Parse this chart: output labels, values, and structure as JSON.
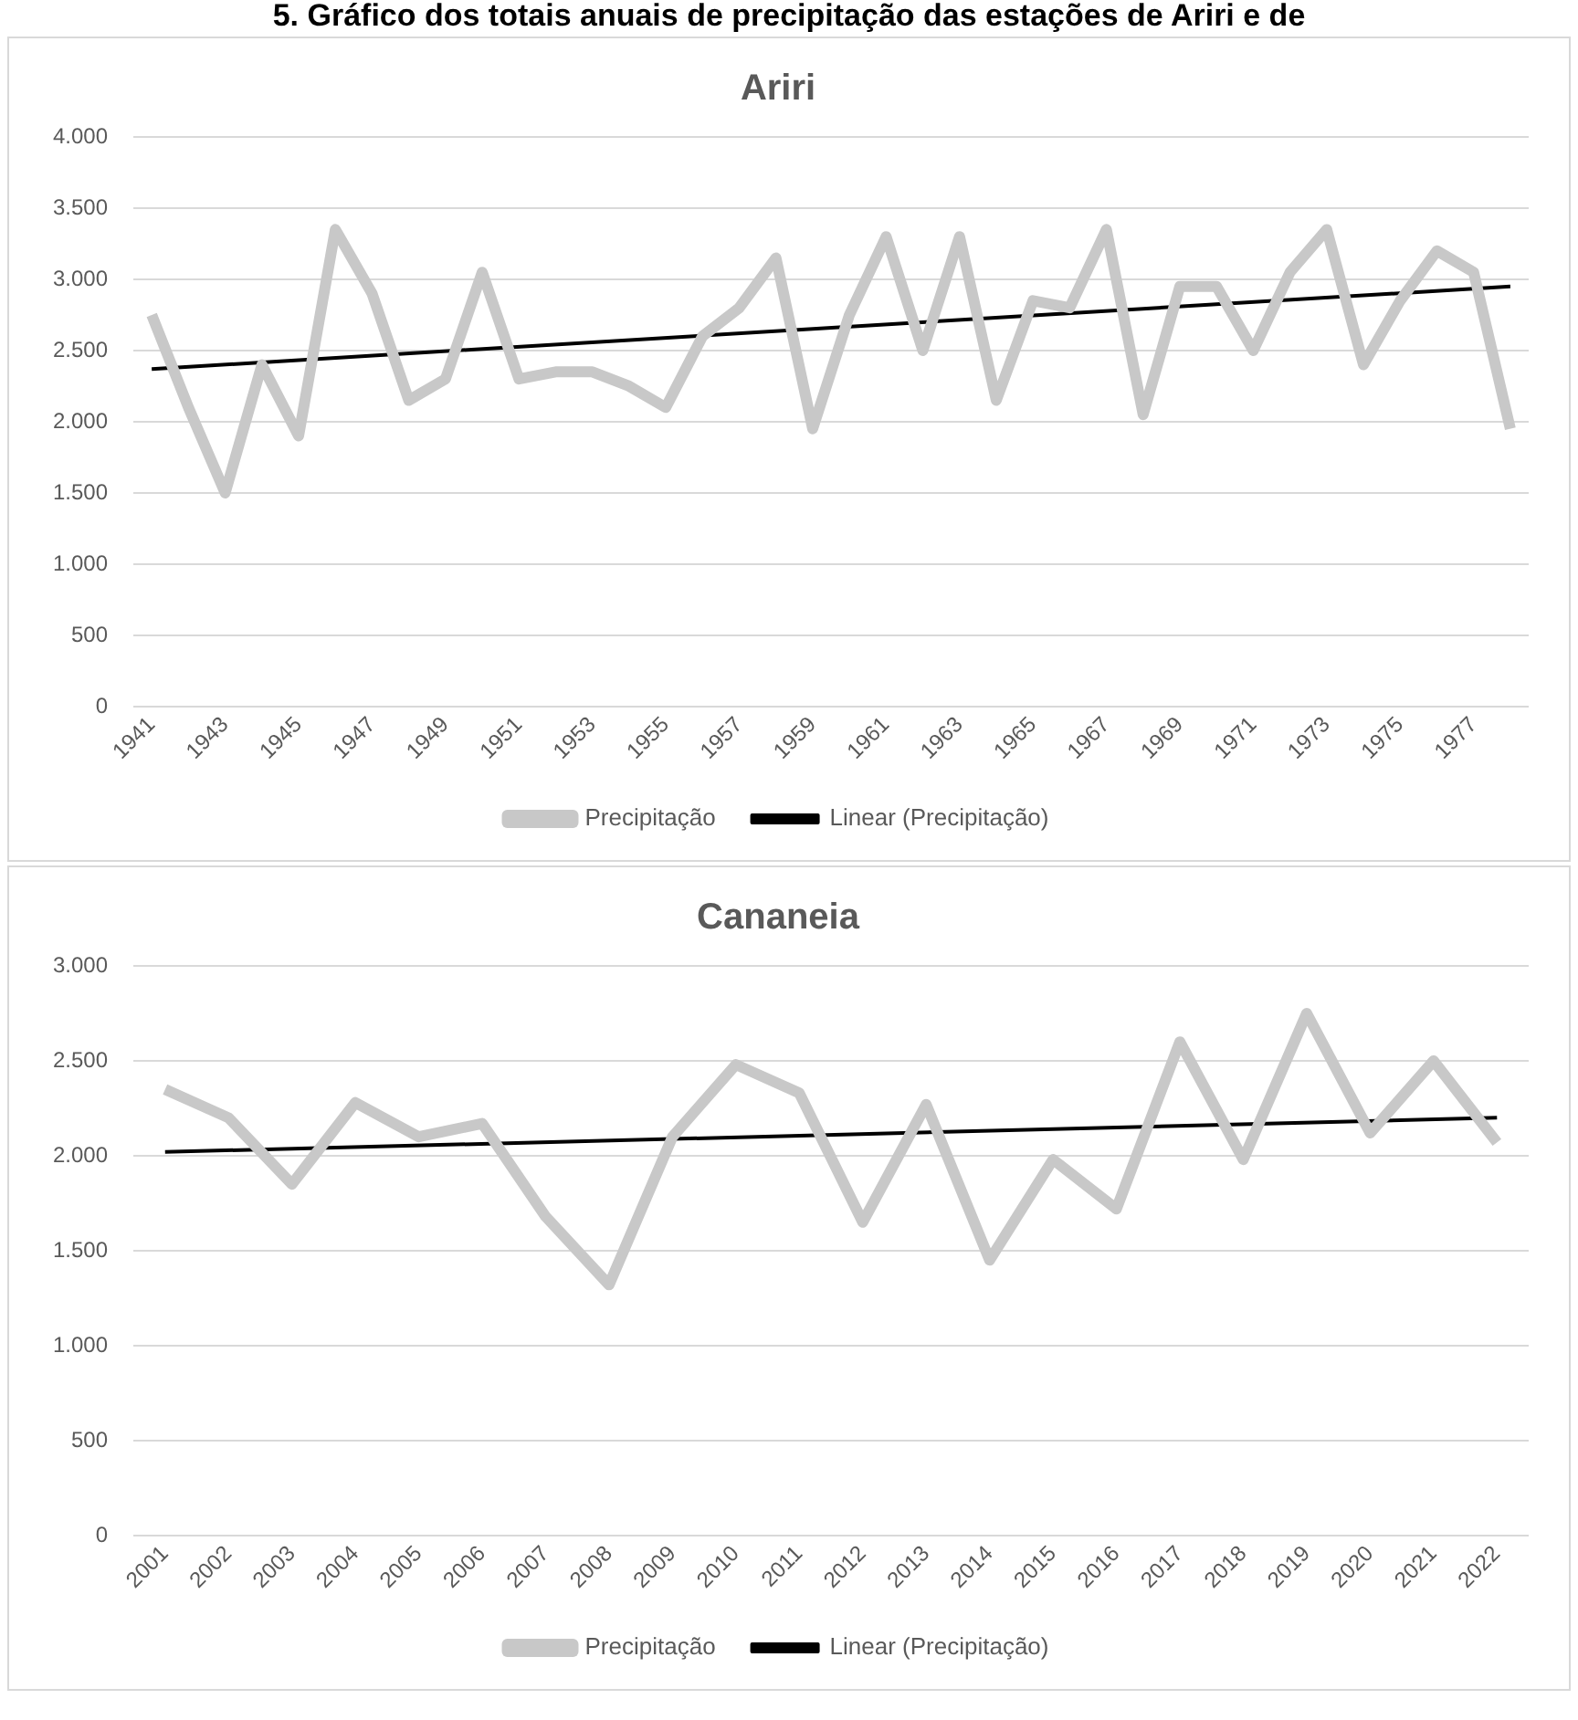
{
  "chart_data": [
    {
      "type": "line",
      "title": "Ariri",
      "annotations": [
        "5. Gráfico dos totais anuais de precipitação das estações de Ariri e de"
      ],
      "xlim": [
        1940.5,
        1978.5
      ],
      "xticks": [
        1941,
        1943,
        1945,
        1947,
        1949,
        1951,
        1953,
        1955,
        1957,
        1959,
        1961,
        1963,
        1965,
        1967,
        1969,
        1971,
        1973,
        1975,
        1977
      ],
      "ylim": [
        0,
        4000
      ],
      "yticks": [
        {
          "value": 0,
          "label": "0"
        },
        {
          "value": 500,
          "label": "500"
        },
        {
          "value": 1000,
          "label": "1.000"
        },
        {
          "value": 1500,
          "label": "1.500"
        },
        {
          "value": 2000,
          "label": "2.000"
        },
        {
          "value": 2500,
          "label": "2.500"
        },
        {
          "value": 3000,
          "label": "3.000"
        },
        {
          "value": 3500,
          "label": "3.500"
        },
        {
          "value": 4000,
          "label": "4.000"
        }
      ],
      "grid": "y",
      "legend": "bottom",
      "marker": "none",
      "series": [
        {
          "name": "Precipitação",
          "color": "#c8c8c8",
          "x": [
            1941,
            1942,
            1943,
            1944,
            1945,
            1946,
            1947,
            1948,
            1949,
            1950,
            1951,
            1952,
            1953,
            1954,
            1955,
            1956,
            1957,
            1958,
            1959,
            1960,
            1961,
            1962,
            1963,
            1964,
            1965,
            1966,
            1967,
            1968,
            1969,
            1970,
            1971,
            1972,
            1973,
            1974,
            1975,
            1976,
            1977,
            1978
          ],
          "values": [
            2750,
            2100,
            1500,
            2400,
            1900,
            3350,
            2900,
            2150,
            2300,
            3050,
            2300,
            2350,
            2350,
            2250,
            2100,
            2600,
            2800,
            3150,
            1950,
            2750,
            3300,
            2500,
            3300,
            2150,
            2850,
            2800,
            3350,
            2050,
            2950,
            2950,
            2500,
            3050,
            3350,
            2400,
            2850,
            3200,
            3050,
            1950
          ]
        },
        {
          "name": "Linear (Precipitação)",
          "color": "#000000",
          "x": [
            1941,
            1978
          ],
          "values": [
            2370,
            2950
          ]
        }
      ]
    },
    {
      "type": "line",
      "title": "Cananeia",
      "xlim": [
        2000.5,
        2022.5
      ],
      "xticks": [
        2001,
        2002,
        2003,
        2004,
        2005,
        2006,
        2007,
        2008,
        2009,
        2010,
        2011,
        2012,
        2013,
        2014,
        2015,
        2016,
        2017,
        2018,
        2019,
        2020,
        2021,
        2022
      ],
      "ylim": [
        0,
        3000
      ],
      "yticks": [
        {
          "value": 0,
          "label": "0"
        },
        {
          "value": 500,
          "label": "500"
        },
        {
          "value": 1000,
          "label": "1.000"
        },
        {
          "value": 1500,
          "label": "1.500"
        },
        {
          "value": 2000,
          "label": "2.000"
        },
        {
          "value": 2500,
          "label": "2.500"
        },
        {
          "value": 3000,
          "label": "3.000"
        }
      ],
      "grid": "y",
      "legend": "bottom",
      "marker": "none",
      "series": [
        {
          "name": "Precipitação",
          "color": "#c8c8c8",
          "x": [
            2001,
            2002,
            2003,
            2004,
            2005,
            2006,
            2007,
            2008,
            2009,
            2010,
            2011,
            2012,
            2013,
            2014,
            2015,
            2016,
            2017,
            2018,
            2019,
            2020,
            2021,
            2022
          ],
          "values": [
            2350,
            2200,
            1850,
            2280,
            2100,
            2170,
            1680,
            1320,
            2100,
            2480,
            2330,
            1650,
            2270,
            1450,
            1980,
            1720,
            2600,
            1980,
            2750,
            2120,
            2500,
            2070
          ]
        },
        {
          "name": "Linear (Precipitação)",
          "color": "#000000",
          "x": [
            2001,
            2022
          ],
          "values": [
            2020,
            2200
          ]
        }
      ]
    }
  ]
}
